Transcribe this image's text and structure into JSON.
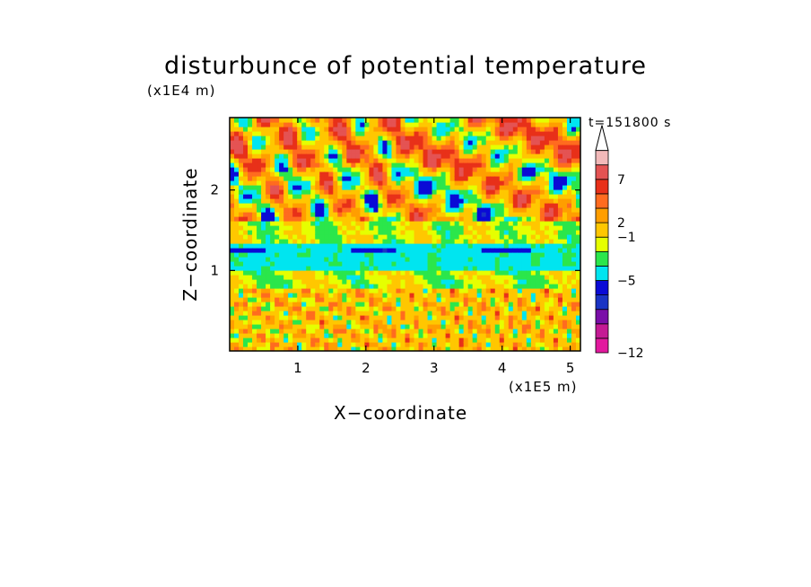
{
  "chart_data": {
    "type": "heatmap",
    "title": "disturbunce of potential temperature",
    "xlabel": "X−coordinate",
    "ylabel": "Z−coordinate",
    "x_multiplier": "(x1E5 m)",
    "y_multiplier": "(x1E4 m)",
    "time_label": "t=151800 s",
    "xlim": [
      0,
      5.15
    ],
    "ylim": [
      0,
      2.9
    ],
    "x_ticks": [
      {
        "value": 1,
        "label": "1"
      },
      {
        "value": 2,
        "label": "2"
      },
      {
        "value": 3,
        "label": "3"
      },
      {
        "value": 4,
        "label": "4"
      },
      {
        "value": 5,
        "label": "5"
      }
    ],
    "y_ticks": [
      {
        "value": 1,
        "label": "1"
      },
      {
        "value": 2,
        "label": "2"
      }
    ],
    "colorbar": {
      "colors": [
        "#e2199e",
        "#c41a94",
        "#7a0ea8",
        "#1a33c4",
        "#0a0ad6",
        "#00e5f0",
        "#2be64b",
        "#e6ff00",
        "#ffc700",
        "#ff9e00",
        "#ff6b1f",
        "#e83019",
        "#e45353",
        "#f2b9b9"
      ],
      "labels": [
        {
          "level": 0,
          "text": "−12"
        },
        {
          "level": 5,
          "text": "−5"
        },
        {
          "level": 8,
          "text": "−1"
        },
        {
          "level": 9,
          "text": "2"
        },
        {
          "level": 12,
          "text": "7"
        }
      ],
      "extend_top_arrow": true
    },
    "structure": {
      "dominant_colors_by_height": [
        {
          "z_range": [
            0,
            0.8
          ],
          "color_index": 8,
          "note": "yellow with green speckle"
        },
        {
          "z_range": [
            0.8,
            1.0
          ],
          "color_index": 6
        },
        {
          "z_range": [
            1.0,
            1.35
          ],
          "color_index": 5,
          "note": "cyan layer"
        },
        {
          "z_range": [
            1.22,
            1.3
          ],
          "color_index": 4,
          "note": "blue streaks"
        },
        {
          "z_range": [
            1.35,
            1.6
          ],
          "color_index": 6
        },
        {
          "z_range": [
            1.6,
            2.9
          ],
          "color_index": 8,
          "note": "banded orange/green/blue wave pattern"
        }
      ]
    }
  }
}
